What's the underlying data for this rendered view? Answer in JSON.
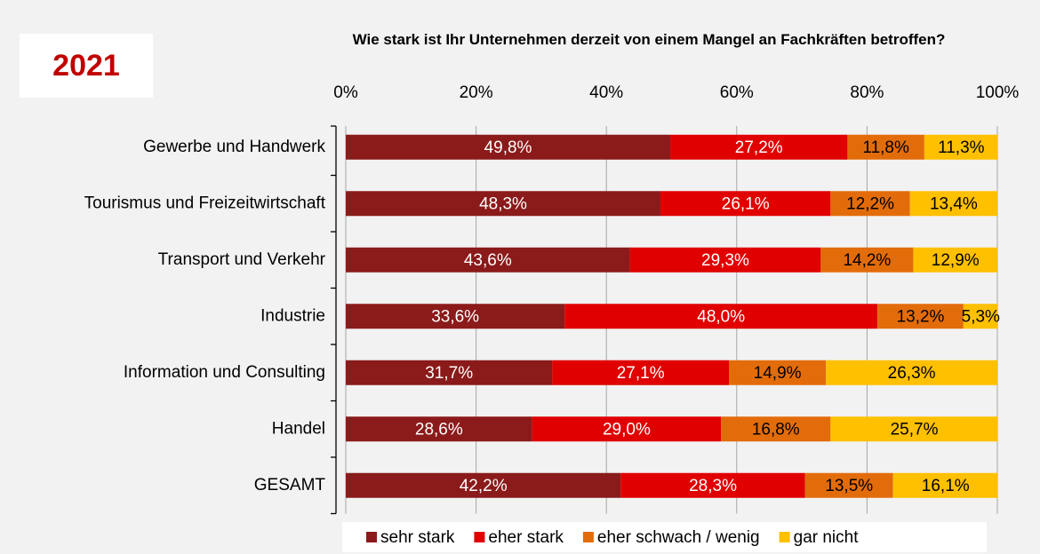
{
  "chart_data": {
    "type": "stacked_bar_horizontal",
    "title": "Wie stark ist Ihr Unternehmen derzeit von einem Mangel an Fachkräften betroffen?",
    "annotations": [
      "2021"
    ],
    "categories": [
      "Gewerbe und Handwerk",
      "Tourismus und Freizeitwirtschaft",
      "Transport und Verkehr",
      "Industrie",
      "Information und Consulting",
      "Handel",
      "GESAMT"
    ],
    "xlim": [
      0,
      100
    ],
    "xticks": [
      {
        "value": 0,
        "label": "0%"
      },
      {
        "value": 20,
        "label": "20%"
      },
      {
        "value": 40,
        "label": "40%"
      },
      {
        "value": 60,
        "label": "60%"
      },
      {
        "value": 80,
        "label": "80%"
      },
      {
        "value": 100,
        "label": "100%"
      }
    ],
    "grid": true,
    "legend": "bottom",
    "series": [
      {
        "name": "sehr stark",
        "color": "#8b1a1a",
        "label_color": "#ffffff",
        "values": [
          49.8,
          48.3,
          43.6,
          33.6,
          31.7,
          28.6,
          42.2
        ],
        "value_labels": [
          "49,8%",
          "48,3%",
          "43,6%",
          "33,6%",
          "31,7%",
          "28,6%",
          "42,2%"
        ]
      },
      {
        "name": "eher stark",
        "color": "#e00000",
        "label_color": "#ffffff",
        "values": [
          27.2,
          26.1,
          29.3,
          48.0,
          27.1,
          29.0,
          28.3
        ],
        "value_labels": [
          "27,2%",
          "26,1%",
          "29,3%",
          "48,0%",
          "27,1%",
          "29,0%",
          "28,3%"
        ]
      },
      {
        "name": "eher schwach / wenig",
        "color": "#e36c0a",
        "label_color": "#000000",
        "values": [
          11.8,
          12.2,
          14.2,
          13.2,
          14.9,
          16.8,
          13.5
        ],
        "value_labels": [
          "11,8%",
          "12,2%",
          "14,2%",
          "13,2%",
          "14,9%",
          "16,8%",
          "13,5%"
        ]
      },
      {
        "name": "gar nicht",
        "color": "#ffc000",
        "label_color": "#000000",
        "values": [
          11.3,
          13.4,
          12.9,
          5.3,
          26.3,
          25.7,
          16.1
        ],
        "value_labels": [
          "11,3%",
          "13,4%",
          "12,9%",
          "5,3%",
          "26,3%",
          "25,7%",
          "16,1%"
        ]
      }
    ]
  }
}
